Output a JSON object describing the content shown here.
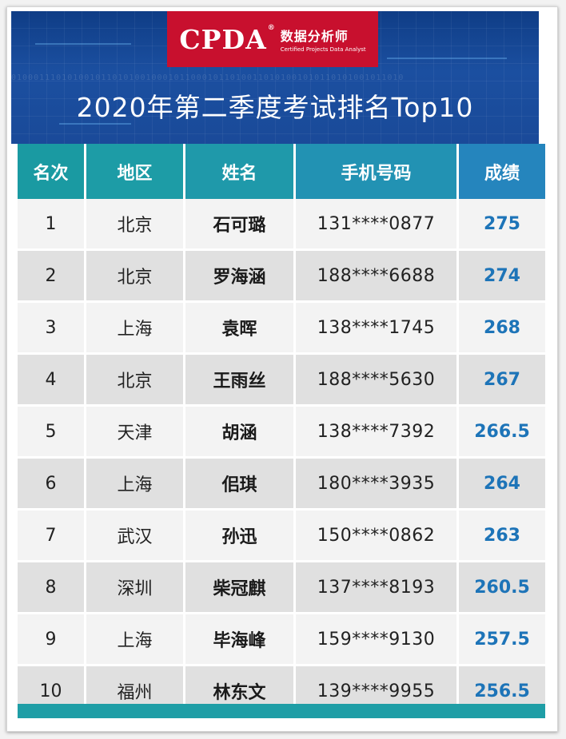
{
  "logo": {
    "mark": "CPDA",
    "reg": "®",
    "name_cn": "数据分析师",
    "name_en": "Certified Projects Data Analyst"
  },
  "title": "2020年第二季度考试排名Top10",
  "table": {
    "headers": [
      "名次",
      "地区",
      "姓名",
      "手机号码",
      "成绩"
    ],
    "rows": [
      {
        "rank": "1",
        "region": "北京",
        "name": "石可璐",
        "phone": "131****0877",
        "score": "275"
      },
      {
        "rank": "2",
        "region": "北京",
        "name": "罗海涵",
        "phone": "188****6688",
        "score": "274"
      },
      {
        "rank": "3",
        "region": "上海",
        "name": "袁晖",
        "phone": "138****1745",
        "score": "268"
      },
      {
        "rank": "4",
        "region": "北京",
        "name": "王雨丝",
        "phone": "188****5630",
        "score": "267"
      },
      {
        "rank": "5",
        "region": "天津",
        "name": "胡涵",
        "phone": "138****7392",
        "score": "266.5"
      },
      {
        "rank": "6",
        "region": "上海",
        "name": "佀琪",
        "phone": "180****3935",
        "score": "264"
      },
      {
        "rank": "7",
        "region": "武汉",
        "name": "孙迅",
        "phone": "150****0862",
        "score": "263"
      },
      {
        "rank": "8",
        "region": "深圳",
        "name": "柴冠麒",
        "phone": "137****8193",
        "score": "260.5"
      },
      {
        "rank": "9",
        "region": "上海",
        "name": "毕海峰",
        "phone": "159****9130",
        "score": "257.5"
      },
      {
        "rank": "10",
        "region": "福州",
        "name": "林东文",
        "phone": "139****9955",
        "score": "256.5"
      }
    ]
  },
  "colors": {
    "banner": "#1b4fa0",
    "logo_bg": "#c8102e",
    "header_teal": "#1f9ea6",
    "score_blue": "#1d74b8"
  }
}
